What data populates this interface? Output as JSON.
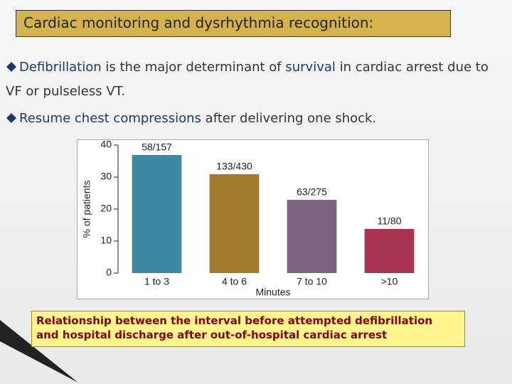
{
  "slide": {
    "title": "Cardiac monitoring and dysrhythmia recognition:",
    "bullets": [
      [
        "Defibrillation",
        " is the major determinant of ",
        "survival",
        " in cardiac arrest due to VF or pulseless VT."
      ],
      [
        "Resume chest compressions",
        " after delivering one shock."
      ]
    ],
    "caption": [
      "Relationship between the interval before attempted defibrillation",
      "and hospital discharge after out-of-hospital cardiac arrest"
    ]
  },
  "chart_data": {
    "type": "bar",
    "categories": [
      "1 to 3",
      "4 to 6",
      "7 to 10",
      ">10"
    ],
    "series": [
      {
        "values": [
          36.9,
          30.9,
          22.9,
          13.8
        ],
        "value_labels": [
          "58/157",
          "133/430",
          "63/275",
          "11/80"
        ],
        "colors": [
          "#3b8aa1",
          "#a27a2c",
          "#7f6383",
          "#a83450"
        ]
      }
    ],
    "x_label": "Minutes",
    "y_label": "% of patients",
    "ylim": [
      0,
      40
    ],
    "yticks": [
      0,
      10,
      20,
      30,
      40
    ]
  }
}
